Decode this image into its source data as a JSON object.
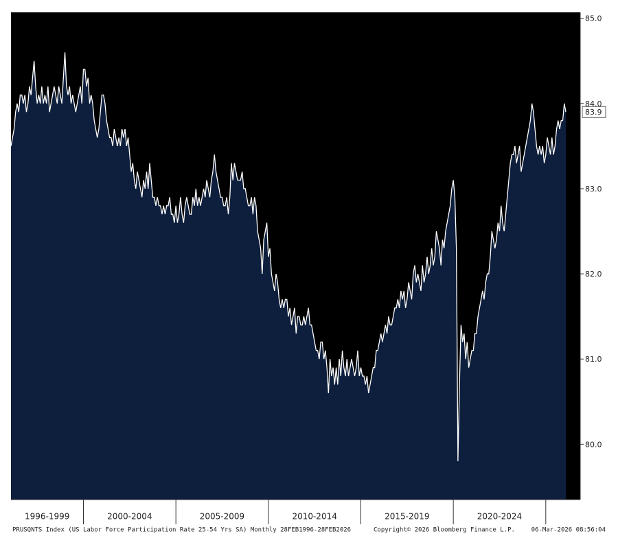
{
  "chart_data": {
    "type": "area",
    "ylim": [
      79.35,
      85.07
    ],
    "yticks": [
      {
        "value": 80,
        "label": "80.0"
      },
      {
        "value": 81,
        "label": "81.0"
      },
      {
        "value": 82,
        "label": "82.0"
      },
      {
        "value": 83,
        "label": "83.0"
      },
      {
        "value": 84,
        "label": "84.0"
      },
      {
        "value": 85,
        "label": "85.0"
      }
    ],
    "periods": [
      "1996-1999",
      "2000-2004",
      "2005-2009",
      "2010-2014",
      "2015-2019",
      "2020-2024"
    ],
    "background": "#000000",
    "last_value_label": true,
    "source": "PRUSQNTS Index (US Labor Force Participation Rate 25-54 Yrs SA) Monthly 28FEB1996-28FEB2026",
    "copyright": "Copyright© 2026 Bloomberg Finance L.P.",
    "timestamp": "06-Mar-2026 08:56:04",
    "x": [
      "1996-02",
      "1996-03",
      "1996-04",
      "1996-05",
      "1996-06",
      "1996-07",
      "1996-08",
      "1996-09",
      "1996-10",
      "1996-11",
      "1996-12",
      "1997-01",
      "1997-02",
      "1997-03",
      "1997-04",
      "1997-05",
      "1997-06",
      "1997-07",
      "1997-08",
      "1997-09",
      "1997-10",
      "1997-11",
      "1997-12",
      "1998-01",
      "1998-02",
      "1998-03",
      "1998-04",
      "1998-05",
      "1998-06",
      "1998-07",
      "1998-08",
      "1998-09",
      "1998-10",
      "1998-11",
      "1998-12",
      "1999-01",
      "1999-02",
      "1999-03",
      "1999-04",
      "1999-05",
      "1999-06",
      "1999-07",
      "1999-08",
      "1999-09",
      "1999-10",
      "1999-11",
      "1999-12",
      "2000-01",
      "2000-02",
      "2000-03",
      "2000-04",
      "2000-05",
      "2000-06",
      "2000-07",
      "2000-08",
      "2000-09",
      "2000-10",
      "2000-11",
      "2000-12",
      "2001-01",
      "2001-02",
      "2001-03",
      "2001-04",
      "2001-05",
      "2001-06",
      "2001-07",
      "2001-08",
      "2001-09",
      "2001-10",
      "2001-11",
      "2001-12",
      "2002-01",
      "2002-02",
      "2002-03",
      "2002-04",
      "2002-05",
      "2002-06",
      "2002-07",
      "2002-08",
      "2002-09",
      "2002-10",
      "2002-11",
      "2002-12",
      "2003-01",
      "2003-02",
      "2003-03",
      "2003-04",
      "2003-05",
      "2003-06",
      "2003-07",
      "2003-08",
      "2003-09",
      "2003-10",
      "2003-11",
      "2003-12",
      "2004-01",
      "2004-02",
      "2004-03",
      "2004-04",
      "2004-05",
      "2004-06",
      "2004-07",
      "2004-08",
      "2004-09",
      "2004-10",
      "2004-11",
      "2004-12",
      "2005-01",
      "2005-02",
      "2005-03",
      "2005-04",
      "2005-05",
      "2005-06",
      "2005-07",
      "2005-08",
      "2005-09",
      "2005-10",
      "2005-11",
      "2005-12",
      "2006-01",
      "2006-02",
      "2006-03",
      "2006-04",
      "2006-05",
      "2006-06",
      "2006-07",
      "2006-08",
      "2006-09",
      "2006-10",
      "2006-11",
      "2006-12",
      "2007-01",
      "2007-02",
      "2007-03",
      "2007-04",
      "2007-05",
      "2007-06",
      "2007-07",
      "2007-08",
      "2007-09",
      "2007-10",
      "2007-11",
      "2007-12",
      "2008-01",
      "2008-02",
      "2008-03",
      "2008-04",
      "2008-05",
      "2008-06",
      "2008-07",
      "2008-08",
      "2008-09",
      "2008-10",
      "2008-11",
      "2008-12",
      "2009-01",
      "2009-02",
      "2009-03",
      "2009-04",
      "2009-05",
      "2009-06",
      "2009-07",
      "2009-08",
      "2009-09",
      "2009-10",
      "2009-11",
      "2009-12",
      "2010-01",
      "2010-02",
      "2010-03",
      "2010-04",
      "2010-05",
      "2010-06",
      "2010-07",
      "2010-08",
      "2010-09",
      "2010-10",
      "2010-11",
      "2010-12",
      "2011-01",
      "2011-02",
      "2011-03",
      "2011-04",
      "2011-05",
      "2011-06",
      "2011-07",
      "2011-08",
      "2011-09",
      "2011-10",
      "2011-11",
      "2011-12",
      "2012-01",
      "2012-02",
      "2012-03",
      "2012-04",
      "2012-05",
      "2012-06",
      "2012-07",
      "2012-08",
      "2012-09",
      "2012-10",
      "2012-11",
      "2012-12",
      "2013-01",
      "2013-02",
      "2013-03",
      "2013-04",
      "2013-05",
      "2013-06",
      "2013-07",
      "2013-08",
      "2013-09",
      "2013-10",
      "2013-11",
      "2013-12",
      "2014-01",
      "2014-02",
      "2014-03",
      "2014-04",
      "2014-05",
      "2014-06",
      "2014-07",
      "2014-08",
      "2014-09",
      "2014-10",
      "2014-11",
      "2014-12",
      "2015-01",
      "2015-02",
      "2015-03",
      "2015-04",
      "2015-05",
      "2015-06",
      "2015-07",
      "2015-08",
      "2015-09",
      "2015-10",
      "2015-11",
      "2015-12",
      "2016-01",
      "2016-02",
      "2016-03",
      "2016-04",
      "2016-05",
      "2016-06",
      "2016-07",
      "2016-08",
      "2016-09",
      "2016-10",
      "2016-11",
      "2016-12",
      "2017-01",
      "2017-02",
      "2017-03",
      "2017-04",
      "2017-05",
      "2017-06",
      "2017-07",
      "2017-08",
      "2017-09",
      "2017-10",
      "2017-11",
      "2017-12",
      "2018-01",
      "2018-02",
      "2018-03",
      "2018-04",
      "2018-05",
      "2018-06",
      "2018-07",
      "2018-08",
      "2018-09",
      "2018-10",
      "2018-11",
      "2018-12",
      "2019-01",
      "2019-02",
      "2019-03",
      "2019-04",
      "2019-05",
      "2019-06",
      "2019-07",
      "2019-08",
      "2019-09",
      "2019-10",
      "2019-11",
      "2019-12",
      "2020-01",
      "2020-02",
      "2020-03",
      "2020-04",
      "2020-05",
      "2020-06",
      "2020-07",
      "2020-08",
      "2020-09",
      "2020-10",
      "2020-11",
      "2020-12",
      "2021-01",
      "2021-02",
      "2021-03",
      "2021-04",
      "2021-05",
      "2021-06",
      "2021-07",
      "2021-08",
      "2021-09",
      "2021-10",
      "2021-11",
      "2021-12",
      "2022-01",
      "2022-02",
      "2022-03",
      "2022-04",
      "2022-05",
      "2022-06",
      "2022-07",
      "2022-08",
      "2022-09",
      "2022-10",
      "2022-11",
      "2022-12",
      "2023-01",
      "2023-02",
      "2023-03",
      "2023-04",
      "2023-05",
      "2023-06",
      "2023-07",
      "2023-08",
      "2023-09",
      "2023-10",
      "2023-11",
      "2023-12",
      "2024-01",
      "2024-02",
      "2024-03",
      "2024-04",
      "2024-05",
      "2024-06",
      "2024-07",
      "2024-08",
      "2024-09",
      "2024-10",
      "2024-11",
      "2024-12",
      "2025-01",
      "2025-02",
      "2025-03",
      "2025-04",
      "2025-05",
      "2025-06",
      "2025-07",
      "2025-08",
      "2025-09",
      "2025-10",
      "2025-11",
      "2025-12",
      "2026-01",
      "2026-02"
    ],
    "series": [
      {
        "name": "PRUSQNTS Index",
        "color": "#ffffff",
        "fill": "#0e1f3d",
        "values": [
          83.5,
          83.6,
          83.7,
          83.9,
          84.0,
          83.9,
          84.1,
          84.1,
          84.0,
          84.1,
          83.9,
          84.0,
          84.2,
          84.1,
          84.3,
          84.5,
          84.2,
          84.0,
          84.1,
          84.0,
          84.2,
          84.0,
          84.1,
          84.0,
          84.2,
          83.9,
          84.0,
          84.1,
          84.2,
          84.1,
          84.0,
          84.2,
          84.1,
          84.0,
          84.3,
          84.6,
          84.2,
          84.1,
          84.2,
          84.0,
          84.1,
          84.0,
          83.9,
          84.0,
          84.1,
          84.2,
          84.0,
          84.4,
          84.4,
          84.2,
          84.3,
          84.0,
          84.1,
          84.0,
          83.8,
          83.7,
          83.6,
          83.7,
          83.9,
          84.1,
          84.1,
          84.0,
          83.8,
          83.7,
          83.6,
          83.6,
          83.5,
          83.7,
          83.6,
          83.5,
          83.6,
          83.5,
          83.7,
          83.6,
          83.7,
          83.5,
          83.6,
          83.4,
          83.2,
          83.3,
          83.1,
          83.0,
          83.2,
          83.1,
          83.0,
          82.9,
          83.1,
          83.0,
          83.2,
          83.0,
          83.3,
          83.1,
          82.9,
          82.9,
          82.8,
          82.9,
          82.8,
          82.8,
          82.7,
          82.8,
          82.7,
          82.8,
          82.8,
          82.9,
          82.7,
          82.7,
          82.6,
          82.8,
          82.6,
          82.7,
          82.9,
          82.7,
          82.6,
          82.8,
          82.9,
          82.8,
          82.7,
          82.7,
          82.9,
          82.8,
          83.0,
          82.8,
          82.9,
          82.8,
          82.9,
          83.0,
          82.9,
          83.1,
          83.0,
          82.9,
          83.1,
          83.2,
          83.4,
          83.2,
          83.1,
          83.0,
          82.9,
          82.9,
          82.8,
          82.8,
          82.9,
          82.7,
          82.9,
          83.3,
          83.1,
          83.3,
          83.2,
          83.1,
          83.1,
          83.1,
          83.2,
          83.0,
          83.0,
          82.9,
          82.8,
          82.8,
          82.9,
          82.7,
          82.9,
          82.8,
          82.5,
          82.4,
          82.3,
          82.0,
          82.4,
          82.5,
          82.6,
          82.2,
          82.3,
          82.0,
          81.9,
          81.8,
          82.0,
          81.9,
          81.7,
          81.6,
          81.7,
          81.6,
          81.7,
          81.7,
          81.5,
          81.6,
          81.4,
          81.5,
          81.6,
          81.3,
          81.5,
          81.5,
          81.4,
          81.4,
          81.5,
          81.4,
          81.5,
          81.6,
          81.4,
          81.4,
          81.3,
          81.2,
          81.1,
          81.1,
          81.0,
          81.2,
          81.2,
          81.0,
          81.1,
          80.9,
          80.6,
          81.0,
          80.8,
          80.9,
          80.7,
          80.9,
          80.7,
          81.0,
          80.8,
          81.1,
          80.9,
          80.8,
          81.0,
          80.8,
          80.9,
          81.0,
          80.9,
          80.8,
          80.9,
          81.1,
          80.8,
          80.9,
          80.8,
          80.8,
          80.7,
          80.8,
          80.6,
          80.7,
          80.8,
          80.9,
          80.9,
          81.1,
          81.1,
          81.2,
          81.3,
          81.2,
          81.3,
          81.4,
          81.3,
          81.5,
          81.4,
          81.4,
          81.5,
          81.6,
          81.6,
          81.7,
          81.6,
          81.8,
          81.7,
          81.8,
          81.6,
          81.7,
          81.9,
          81.8,
          81.7,
          82.0,
          82.1,
          81.9,
          82.0,
          81.9,
          81.8,
          82.1,
          81.9,
          82.0,
          82.2,
          82.0,
          82.1,
          82.3,
          82.1,
          82.2,
          82.5,
          82.4,
          82.3,
          82.1,
          82.4,
          82.3,
          82.5,
          82.6,
          82.7,
          82.8,
          83.0,
          83.1,
          82.9,
          82.3,
          79.8,
          80.7,
          81.4,
          81.2,
          81.3,
          81.0,
          81.2,
          80.9,
          81.0,
          81.1,
          81.1,
          81.3,
          81.3,
          81.5,
          81.6,
          81.7,
          81.8,
          81.7,
          81.9,
          82.0,
          82.0,
          82.2,
          82.5,
          82.4,
          82.3,
          82.4,
          82.6,
          82.5,
          82.8,
          82.6,
          82.5,
          82.7,
          82.9,
          83.1,
          83.3,
          83.4,
          83.4,
          83.5,
          83.3,
          83.4,
          83.5,
          83.2,
          83.3,
          83.4,
          83.5,
          83.6,
          83.7,
          83.8,
          84.0,
          83.9,
          83.7,
          83.5,
          83.4,
          83.5,
          83.4,
          83.5,
          83.3,
          83.4,
          83.6,
          83.5,
          83.4,
          83.6,
          83.4,
          83.5,
          83.7,
          83.8,
          83.7,
          83.8,
          83.8,
          84.0,
          83.9
        ]
      }
    ]
  }
}
